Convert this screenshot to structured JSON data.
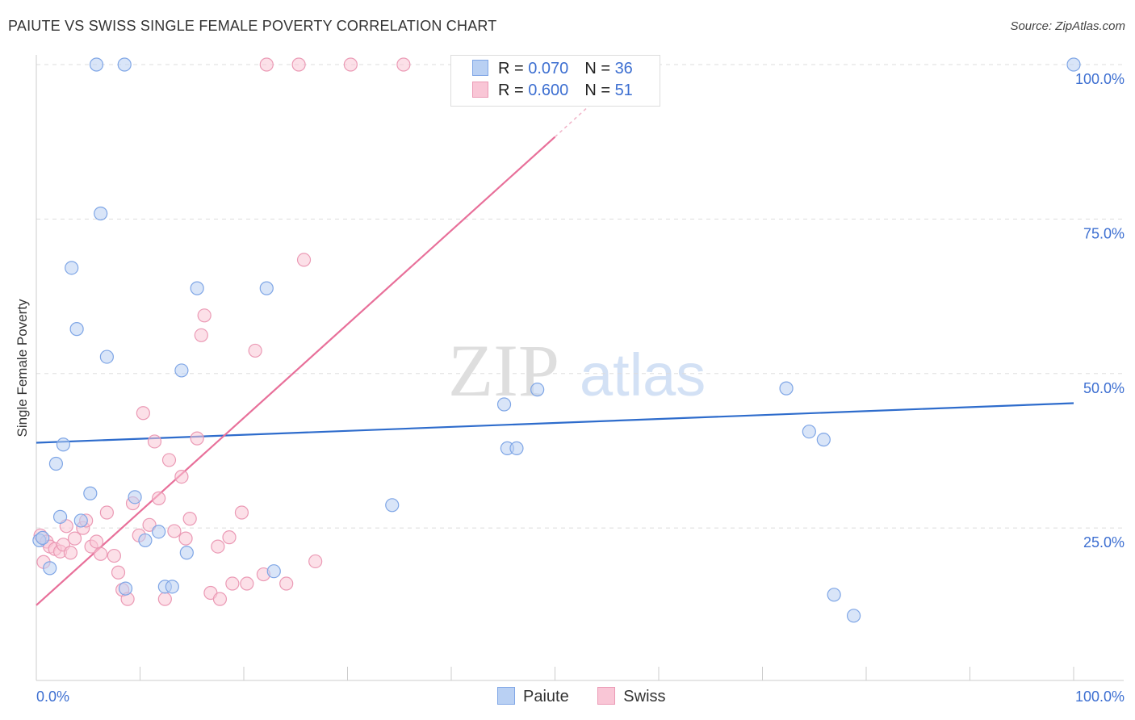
{
  "header": {
    "title": "PAIUTE VS SWISS SINGLE FEMALE POVERTY CORRELATION CHART",
    "source": "Source: ZipAtlas.com"
  },
  "watermark": {
    "zip": "ZIP",
    "atlas": "atlas"
  },
  "legend": {
    "paiute": {
      "r_label": "R =",
      "r_value": "0.070",
      "n_label": "N =",
      "n_value": "36"
    },
    "swiss": {
      "r_label": "R =",
      "r_value": "0.600",
      "n_label": "N =",
      "n_value": "51"
    }
  },
  "bottom_legend": {
    "paiute": "Paiute",
    "swiss": "Swiss"
  },
  "colors": {
    "paiute_fill": "#b9d0f3",
    "paiute_stroke": "#7fa6e6",
    "paiute_line": "#2e6ccc",
    "swiss_fill": "#f9c6d6",
    "swiss_stroke": "#eb9ab5",
    "swiss_line": "#e8709a",
    "tick_label": "#3d6fd1",
    "grid": "#dddddd"
  },
  "chart_data": {
    "type": "scatter",
    "title": "PAIUTE VS SWISS SINGLE FEMALE POVERTY CORRELATION CHART",
    "xlabel": "",
    "ylabel": "Single Female Poverty",
    "xlim": [
      0,
      100
    ],
    "ylim": [
      0,
      102
    ],
    "x_tick_labels": [
      "0.0%",
      "100.0%"
    ],
    "y_ticks": [
      {
        "value": 25,
        "label": "25.0%"
      },
      {
        "value": 50,
        "label": "50.0%"
      },
      {
        "value": 75,
        "label": "75.0%"
      },
      {
        "value": 100,
        "label": "100.0%"
      }
    ],
    "series": [
      {
        "name": "Paiute",
        "r": 0.07,
        "n": 36,
        "trend": {
          "x": [
            0,
            100
          ],
          "y": [
            38.8,
            45.2
          ]
        },
        "points": [
          {
            "x": 0.3,
            "y": 23.0
          },
          {
            "x": 0.6,
            "y": 23.4
          },
          {
            "x": 1.3,
            "y": 18.5
          },
          {
            "x": 1.9,
            "y": 35.4
          },
          {
            "x": 2.3,
            "y": 26.8
          },
          {
            "x": 2.6,
            "y": 38.5
          },
          {
            "x": 3.4,
            "y": 67.1
          },
          {
            "x": 3.9,
            "y": 57.2
          },
          {
            "x": 4.3,
            "y": 26.2
          },
          {
            "x": 5.2,
            "y": 30.6
          },
          {
            "x": 5.8,
            "y": 100.0
          },
          {
            "x": 6.2,
            "y": 75.9
          },
          {
            "x": 6.8,
            "y": 52.7
          },
          {
            "x": 8.5,
            "y": 100.0
          },
          {
            "x": 8.6,
            "y": 15.2
          },
          {
            "x": 9.5,
            "y": 30.0
          },
          {
            "x": 10.5,
            "y": 23.0
          },
          {
            "x": 11.8,
            "y": 24.4
          },
          {
            "x": 12.4,
            "y": 15.5
          },
          {
            "x": 13.1,
            "y": 15.5
          },
          {
            "x": 14.0,
            "y": 50.5
          },
          {
            "x": 14.5,
            "y": 21.0
          },
          {
            "x": 15.5,
            "y": 63.8
          },
          {
            "x": 22.2,
            "y": 63.8
          },
          {
            "x": 22.9,
            "y": 18.0
          },
          {
            "x": 34.3,
            "y": 28.7
          },
          {
            "x": 45.1,
            "y": 45.0
          },
          {
            "x": 45.4,
            "y": 37.9
          },
          {
            "x": 46.3,
            "y": 37.9
          },
          {
            "x": 48.3,
            "y": 47.4
          },
          {
            "x": 72.3,
            "y": 47.6
          },
          {
            "x": 74.5,
            "y": 40.6
          },
          {
            "x": 75.9,
            "y": 39.3
          },
          {
            "x": 76.9,
            "y": 14.2
          },
          {
            "x": 78.8,
            "y": 10.8
          },
          {
            "x": 100.0,
            "y": 100.0
          }
        ]
      },
      {
        "name": "Swiss",
        "r": 0.6,
        "n": 51,
        "trend": {
          "x": [
            0,
            50
          ],
          "y": [
            12.5,
            88.3
          ]
        },
        "trend_dashed": {
          "x": [
            50,
            58
          ],
          "y": [
            88.3,
            100.5
          ]
        },
        "points": [
          {
            "x": 0.4,
            "y": 23.8
          },
          {
            "x": 0.7,
            "y": 19.5
          },
          {
            "x": 1.0,
            "y": 22.8
          },
          {
            "x": 1.3,
            "y": 22.0
          },
          {
            "x": 1.8,
            "y": 21.6
          },
          {
            "x": 2.3,
            "y": 21.2
          },
          {
            "x": 2.6,
            "y": 22.3
          },
          {
            "x": 2.9,
            "y": 25.3
          },
          {
            "x": 3.3,
            "y": 21.0
          },
          {
            "x": 3.7,
            "y": 23.3
          },
          {
            "x": 4.5,
            "y": 25.0
          },
          {
            "x": 4.8,
            "y": 26.2
          },
          {
            "x": 5.3,
            "y": 22.0
          },
          {
            "x": 5.8,
            "y": 22.8
          },
          {
            "x": 6.2,
            "y": 20.8
          },
          {
            "x": 6.8,
            "y": 27.5
          },
          {
            "x": 7.5,
            "y": 20.5
          },
          {
            "x": 7.9,
            "y": 17.8
          },
          {
            "x": 8.3,
            "y": 15.0
          },
          {
            "x": 8.8,
            "y": 13.5
          },
          {
            "x": 9.3,
            "y": 29.0
          },
          {
            "x": 9.9,
            "y": 23.8
          },
          {
            "x": 10.3,
            "y": 43.6
          },
          {
            "x": 10.9,
            "y": 25.5
          },
          {
            "x": 11.4,
            "y": 39.0
          },
          {
            "x": 11.8,
            "y": 29.8
          },
          {
            "x": 12.4,
            "y": 13.5
          },
          {
            "x": 12.8,
            "y": 36.0
          },
          {
            "x": 13.3,
            "y": 24.5
          },
          {
            "x": 14.0,
            "y": 33.3
          },
          {
            "x": 14.4,
            "y": 23.3
          },
          {
            "x": 14.8,
            "y": 26.5
          },
          {
            "x": 15.5,
            "y": 39.5
          },
          {
            "x": 15.9,
            "y": 56.2
          },
          {
            "x": 16.2,
            "y": 59.4
          },
          {
            "x": 16.8,
            "y": 14.5
          },
          {
            "x": 17.5,
            "y": 22.0
          },
          {
            "x": 17.7,
            "y": 13.5
          },
          {
            "x": 18.6,
            "y": 23.5
          },
          {
            "x": 18.9,
            "y": 16.0
          },
          {
            "x": 19.8,
            "y": 27.5
          },
          {
            "x": 20.3,
            "y": 16.0
          },
          {
            "x": 21.1,
            "y": 53.7
          },
          {
            "x": 21.9,
            "y": 17.5
          },
          {
            "x": 22.2,
            "y": 100.0
          },
          {
            "x": 24.1,
            "y": 16.0
          },
          {
            "x": 25.3,
            "y": 100.0
          },
          {
            "x": 25.8,
            "y": 68.4
          },
          {
            "x": 26.9,
            "y": 19.6
          },
          {
            "x": 30.3,
            "y": 100.0
          },
          {
            "x": 35.4,
            "y": 100.0
          }
        ]
      }
    ]
  }
}
